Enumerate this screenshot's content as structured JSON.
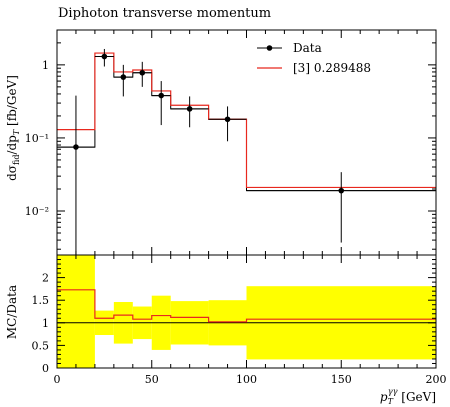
{
  "chart_data": [
    {
      "type": "line",
      "panel": "main",
      "title": "Diphoton transverse momentum",
      "ylabel": "dσ_fid / dp_T [fb/GeV]",
      "yscale": "log",
      "ylim": [
        0.0025,
        3.0
      ],
      "xlim": [
        0,
        200
      ],
      "yticks": [
        {
          "value": 1,
          "label": "1"
        },
        {
          "value": 0.1,
          "label": "10⁻¹"
        },
        {
          "value": 0.01,
          "label": "10⁻²"
        }
      ],
      "legend_position": "top-right",
      "series": [
        {
          "name": "Data",
          "style": "points-with-errorbars",
          "color": "#000000",
          "points": [
            {
              "x": 10,
              "xerr": 10,
              "y": 0.075,
              "ylo": 0.002,
              "yhi": 0.38
            },
            {
              "x": 25,
              "xerr": 5,
              "y": 1.3,
              "ylo": 0.95,
              "yhi": 1.65
            },
            {
              "x": 35,
              "xerr": 5,
              "y": 0.68,
              "ylo": 0.37,
              "yhi": 1.0
            },
            {
              "x": 45,
              "xerr": 5,
              "y": 0.78,
              "ylo": 0.5,
              "yhi": 1.1
            },
            {
              "x": 55,
              "xerr": 5,
              "y": 0.38,
              "ylo": 0.15,
              "yhi": 0.6
            },
            {
              "x": 70,
              "xerr": 10,
              "y": 0.25,
              "ylo": 0.14,
              "yhi": 0.37
            },
            {
              "x": 90,
              "xerr": 10,
              "y": 0.18,
              "ylo": 0.09,
              "yhi": 0.27
            },
            {
              "x": 150,
              "xerr": 50,
              "y": 0.019,
              "ylo": 0.0037,
              "yhi": 0.034
            }
          ]
        },
        {
          "name": "[3] 0.289488",
          "style": "step",
          "color": "#e8281e",
          "bins": [
            {
              "lo": 0,
              "hi": 20,
              "value": 0.13
            },
            {
              "lo": 20,
              "hi": 30,
              "value": 1.45
            },
            {
              "lo": 30,
              "hi": 40,
              "value": 0.8
            },
            {
              "lo": 40,
              "hi": 50,
              "value": 0.85
            },
            {
              "lo": 50,
              "hi": 60,
              "value": 0.44
            },
            {
              "lo": 60,
              "hi": 80,
              "value": 0.28
            },
            {
              "lo": 80,
              "hi": 100,
              "value": 0.18
            },
            {
              "lo": 100,
              "hi": 200,
              "value": 0.021
            }
          ]
        },
        {
          "name": "",
          "style": "step",
          "color": "#000000",
          "bins": [
            {
              "lo": 0,
              "hi": 20,
              "value": 0.075
            },
            {
              "lo": 20,
              "hi": 30,
              "value": 1.3
            },
            {
              "lo": 30,
              "hi": 40,
              "value": 0.68
            },
            {
              "lo": 40,
              "hi": 50,
              "value": 0.78
            },
            {
              "lo": 50,
              "hi": 60,
              "value": 0.38
            },
            {
              "lo": 60,
              "hi": 80,
              "value": 0.25
            },
            {
              "lo": 80,
              "hi": 100,
              "value": 0.18
            },
            {
              "lo": 100,
              "hi": 200,
              "value": 0.019
            }
          ]
        }
      ]
    },
    {
      "type": "line",
      "panel": "ratio",
      "ylabel": "MC/Data",
      "xlabel": "p_T^γγ [GeV]",
      "xlim": [
        0,
        200
      ],
      "ylim": [
        0,
        2.5
      ],
      "yticks": [
        0,
        0.5,
        1,
        1.5,
        2
      ],
      "xticks": [
        0,
        50,
        100,
        150,
        200
      ],
      "band_color": "#ffff00",
      "band": [
        {
          "lo": 0,
          "hi": 20,
          "ymin": 0.0,
          "ymax": 2.5
        },
        {
          "lo": 20,
          "hi": 30,
          "ymin": 0.73,
          "ymax": 1.27
        },
        {
          "lo": 30,
          "hi": 40,
          "ymin": 0.54,
          "ymax": 1.46
        },
        {
          "lo": 40,
          "hi": 50,
          "ymin": 0.64,
          "ymax": 1.36
        },
        {
          "lo": 50,
          "hi": 60,
          "ymin": 0.4,
          "ymax": 1.6
        },
        {
          "lo": 60,
          "hi": 80,
          "ymin": 0.52,
          "ymax": 1.48
        },
        {
          "lo": 80,
          "hi": 100,
          "ymin": 0.5,
          "ymax": 1.5
        },
        {
          "lo": 100,
          "hi": 200,
          "ymin": 0.19,
          "ymax": 1.81
        }
      ],
      "series": [
        {
          "name": "[3] 0.289488",
          "style": "step",
          "color": "#e8281e",
          "bins": [
            {
              "lo": 0,
              "hi": 20,
              "value": 1.73
            },
            {
              "lo": 20,
              "hi": 30,
              "value": 1.1
            },
            {
              "lo": 30,
              "hi": 40,
              "value": 1.17
            },
            {
              "lo": 40,
              "hi": 50,
              "value": 1.08
            },
            {
              "lo": 50,
              "hi": 60,
              "value": 1.16
            },
            {
              "lo": 60,
              "hi": 80,
              "value": 1.12
            },
            {
              "lo": 80,
              "hi": 100,
              "value": 1.02
            },
            {
              "lo": 100,
              "hi": 200,
              "value": 1.08
            }
          ]
        },
        {
          "name": "Data",
          "style": "reference-line",
          "color": "#000000",
          "value": 1.0
        }
      ]
    }
  ]
}
